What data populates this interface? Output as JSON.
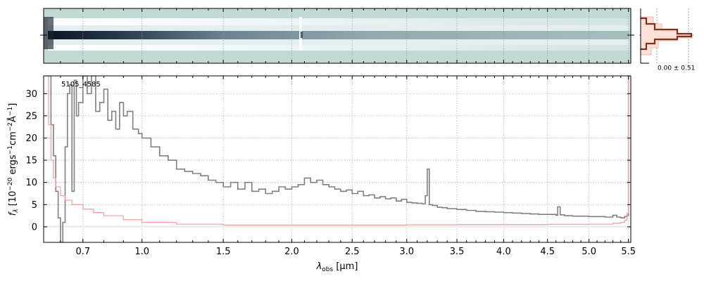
{
  "object_label": "5105_4585",
  "sigma_label": "0.00 ± 0.51",
  "chart_data": [
    {
      "type": "line",
      "id": "spectrum-1d",
      "xlabel": "λobs [μm]",
      "ylabel": "fλ [10⁻²⁰ ergs⁻¹cm⁻²Å⁻¹]",
      "xlim": [
        0.53,
        5.53
      ],
      "ylim": [
        -3.5,
        34
      ],
      "x_scale": "sqrt-like (nonlinear wavelength axis)",
      "grid": true,
      "x_tick_labels": [
        "0.7",
        "1.0",
        "1.5",
        "2.0",
        "2.5",
        "3.0",
        "3.5",
        "4.0",
        "4.5",
        "5.0",
        "5.5"
      ],
      "x_tick_values": [
        0.7,
        1.0,
        1.5,
        2.0,
        2.5,
        3.0,
        3.5,
        4.0,
        4.5,
        5.0,
        5.5
      ],
      "y_tick_labels": [
        "0",
        "5",
        "10",
        "15",
        "20",
        "25",
        "30"
      ],
      "y_tick_values": [
        0,
        5,
        10,
        15,
        20,
        25,
        30
      ],
      "series": [
        {
          "color": "#808080",
          "step": true,
          "x": [
            0.54,
            0.56,
            0.57,
            0.58,
            0.59,
            0.6,
            0.61,
            0.62,
            0.63,
            0.64,
            0.65,
            0.66,
            0.67,
            0.68,
            0.7,
            0.72,
            0.74,
            0.76,
            0.78,
            0.8,
            0.82,
            0.84,
            0.86,
            0.88,
            0.9,
            0.92,
            0.95,
            0.98,
            1.0,
            1.05,
            1.1,
            1.15,
            1.2,
            1.25,
            1.3,
            1.35,
            1.4,
            1.45,
            1.5,
            1.55,
            1.6,
            1.65,
            1.7,
            1.75,
            1.8,
            1.85,
            1.9,
            1.95,
            2.0,
            2.05,
            2.1,
            2.15,
            2.2,
            2.25,
            2.3,
            2.35,
            2.4,
            2.45,
            2.5,
            2.55,
            2.6,
            2.65,
            2.7,
            2.75,
            2.8,
            2.85,
            2.9,
            2.95,
            3.0,
            3.05,
            3.1,
            3.15,
            3.18,
            3.2,
            3.22,
            3.25,
            3.3,
            3.35,
            3.4,
            3.5,
            3.6,
            3.7,
            3.8,
            3.9,
            4.0,
            4.1,
            4.2,
            4.3,
            4.4,
            4.5,
            4.6,
            4.62,
            4.65,
            4.7,
            4.8,
            4.9,
            5.0,
            5.1,
            5.2,
            5.3,
            5.35,
            5.4,
            5.45,
            5.48,
            5.5,
            5.51,
            5.52
          ],
          "y": [
            34,
            23,
            16,
            8,
            2,
            -3.5,
            1,
            18,
            30,
            32,
            8,
            33,
            25,
            28,
            34,
            30,
            34,
            26,
            28,
            31,
            24,
            26,
            22,
            28,
            25,
            26,
            22,
            21,
            20,
            18,
            16,
            15,
            13,
            12.5,
            12,
            11.5,
            10.5,
            10,
            9,
            10,
            8.5,
            10,
            8,
            8.5,
            7.5,
            8,
            9,
            8.5,
            9,
            9.5,
            11,
            10,
            10.5,
            9.5,
            9,
            8.5,
            8,
            8.3,
            7.5,
            8,
            7,
            7.2,
            6.5,
            6.8,
            6.3,
            6.5,
            5.8,
            6.2,
            5.5,
            5.4,
            5.3,
            5.2,
            7,
            13,
            5,
            4.8,
            4.4,
            4.3,
            4.1,
            3.9,
            3.7,
            3.5,
            3.4,
            3.3,
            3.2,
            3.1,
            3.0,
            2.9,
            2.8,
            2.8,
            2.6,
            4.5,
            2.7,
            2.5,
            2.4,
            2.4,
            2.3,
            2.3,
            2.2,
            2.6,
            2.2,
            2.0,
            2.3,
            2.6,
            34,
            34,
            34
          ]
        },
        {
          "color": "#f4a3a3",
          "step": true,
          "x": [
            0.54,
            0.55,
            0.56,
            0.57,
            0.58,
            0.6,
            0.62,
            0.65,
            0.7,
            0.75,
            0.8,
            0.9,
            1.0,
            1.2,
            1.5,
            2.0,
            2.5,
            3.0,
            3.5,
            4.0,
            4.5,
            5.0,
            5.3,
            5.4,
            5.45,
            5.48,
            5.5,
            5.51,
            5.52
          ],
          "y": [
            34,
            23,
            15,
            11,
            9,
            7,
            6,
            5,
            4,
            3.2,
            2.5,
            1.6,
            1.0,
            0.6,
            0.4,
            0.4,
            0.4,
            0.45,
            0.5,
            0.5,
            0.55,
            0.6,
            0.8,
            1.0,
            1.5,
            3,
            34,
            34,
            34
          ]
        }
      ]
    },
    {
      "type": "heatmap",
      "id": "spectrum-2d",
      "xlim": [
        0.53,
        5.53
      ],
      "colormap": "bone-teal"
    },
    {
      "type": "line",
      "id": "profile-histogram",
      "colors": [
        "#8b3a1f",
        "#f4b8a8"
      ]
    }
  ]
}
